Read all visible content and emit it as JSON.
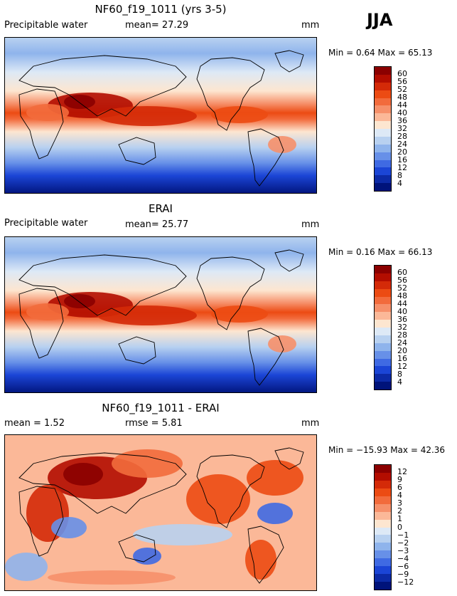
{
  "season_label": "JJA",
  "chart_data": [
    {
      "type": "heatmap",
      "title": "NF60_f19_1011 (yrs 3-5)",
      "left_label": "Precipitable water",
      "mid_label": "mean=  27.29",
      "units": "mm",
      "stats": "Min =    0.64  Max =   65.13",
      "min": 0.64,
      "max": 65.13,
      "mean": 27.29,
      "colorbar_levels": [
        "60",
        "56",
        "52",
        "48",
        "44",
        "40",
        "36",
        "32",
        "28",
        "24",
        "20",
        "16",
        "12",
        "8",
        "4"
      ],
      "colorbar_colors": [
        "#8b0000",
        "#b30d00",
        "#d42a08",
        "#ec4b13",
        "#f26b3c",
        "#f6906a",
        "#fbb898",
        "#fde6d0",
        "#dde9f6",
        "#b8d1f0",
        "#8fb4ec",
        "#6790e8",
        "#3f6ae3",
        "#1b45d6",
        "#0c2aa6",
        "#00137a"
      ]
    },
    {
      "type": "heatmap",
      "title": "ERAI",
      "left_label": "Precipitable water",
      "mid_label": "mean=  25.77",
      "units": "mm",
      "stats": "Min =    0.16  Max =   66.13",
      "min": 0.16,
      "max": 66.13,
      "mean": 25.77,
      "colorbar_levels": [
        "60",
        "56",
        "52",
        "48",
        "44",
        "40",
        "36",
        "32",
        "28",
        "24",
        "20",
        "16",
        "12",
        "8",
        "4"
      ],
      "colorbar_colors": [
        "#8b0000",
        "#b30d00",
        "#d42a08",
        "#ec4b13",
        "#f26b3c",
        "#f6906a",
        "#fbb898",
        "#fde6d0",
        "#dde9f6",
        "#b8d1f0",
        "#8fb4ec",
        "#6790e8",
        "#3f6ae3",
        "#1b45d6",
        "#0c2aa6",
        "#00137a"
      ]
    },
    {
      "type": "heatmap",
      "title": "NF60_f19_1011 - ERAI",
      "left_label": "mean =    1.52",
      "mid_label": "rmse =   5.81",
      "units": "mm",
      "stats": "Min = −15.93  Max =   42.36",
      "min": -15.93,
      "max": 42.36,
      "mean": 1.52,
      "rmse": 5.81,
      "colorbar_levels": [
        "12",
        "9",
        "6",
        "4",
        "3",
        "2",
        "1",
        "0",
        "−1",
        "−2",
        "−3",
        "−4",
        "−6",
        "−9",
        "−12"
      ],
      "colorbar_colors": [
        "#8b0000",
        "#b30d00",
        "#d42a08",
        "#ec4b13",
        "#f26b3c",
        "#f6906a",
        "#fbb898",
        "#fde6d0",
        "#dde9f6",
        "#b8d1f0",
        "#8fb4ec",
        "#6790e8",
        "#3f6ae3",
        "#1b45d6",
        "#0c2aa6",
        "#00137a"
      ]
    }
  ]
}
